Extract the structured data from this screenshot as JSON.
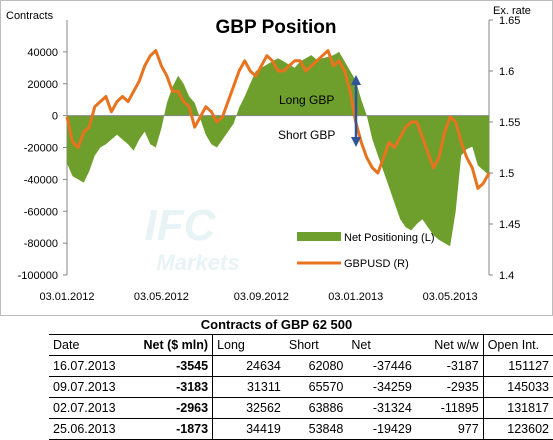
{
  "chart_data": {
    "type": "bar+line",
    "title": "GBP Position",
    "left_axis_label": "Contracts",
    "right_axis_label": "Ex. rate",
    "left_ylim": [
      -100000,
      60000
    ],
    "left_ticks": [
      40000,
      20000,
      0,
      -20000,
      -40000,
      -60000,
      -80000,
      -100000
    ],
    "left_tick_labels": [
      "40000",
      "20000",
      "0",
      "-20000",
      "-40000",
      "-60000",
      "-80000",
      "-100000"
    ],
    "right_ylim": [
      1.4,
      1.65
    ],
    "right_ticks": [
      1.4,
      1.45,
      1.5,
      1.55,
      1.6,
      1.65
    ],
    "right_tick_labels": [
      "1.4",
      "1.45",
      "1.5",
      "1.55",
      "1.6",
      "1.65"
    ],
    "x_tick_labels": [
      "03.01.2012",
      "03.05.2012",
      "03.09.2012",
      "03.01.2013",
      "03.05.2013"
    ],
    "x_tick_weeks": [
      0,
      17,
      35,
      52,
      69
    ],
    "annotations": {
      "long": "Long GBP",
      "short": "Short GBP"
    },
    "watermark": {
      "line1": "IFC",
      "line2": "Markets"
    },
    "series": [
      {
        "name": "Net Positioning (L)",
        "axis": "left",
        "color": "#6e9e2c",
        "values": [
          -30000,
          -38000,
          -40000,
          -42000,
          -35000,
          -25000,
          -20000,
          -18000,
          -15000,
          -12000,
          -15000,
          -18000,
          -22000,
          -15000,
          -10000,
          -18000,
          -20000,
          -8000,
          8000,
          18000,
          25000,
          20000,
          12000,
          8000,
          -2000,
          -12000,
          -18000,
          -20000,
          -15000,
          -10000,
          -5000,
          5000,
          12000,
          20000,
          28000,
          30000,
          32000,
          34000,
          36000,
          34000,
          32000,
          30000,
          34000,
          36000,
          38000,
          35000,
          36000,
          37000,
          38000,
          40000,
          34000,
          28000,
          22000,
          10000,
          0,
          -15000,
          -25000,
          -35000,
          -45000,
          -55000,
          -65000,
          -70000,
          -72000,
          -68000,
          -65000,
          -70000,
          -75000,
          -78000,
          -80000,
          -82000,
          -60000,
          -25000,
          -21000,
          -19429,
          -31324,
          -34259,
          -37446
        ]
      },
      {
        "name": "GBPUSD (R)",
        "axis": "right",
        "color": "#e8731f",
        "values": [
          1.555,
          1.53,
          1.525,
          1.54,
          1.545,
          1.565,
          1.57,
          1.575,
          1.56,
          1.57,
          1.575,
          1.57,
          1.58,
          1.59,
          1.605,
          1.615,
          1.62,
          1.605,
          1.595,
          1.58,
          1.58,
          1.57,
          1.565,
          1.545,
          1.555,
          1.565,
          1.56,
          1.55,
          1.555,
          1.57,
          1.585,
          1.6,
          1.61,
          1.6,
          1.595,
          1.605,
          1.615,
          1.61,
          1.6,
          1.6,
          1.605,
          1.61,
          1.61,
          1.6,
          1.605,
          1.61,
          1.615,
          1.62,
          1.605,
          1.61,
          1.6,
          1.58,
          1.55,
          1.53,
          1.515,
          1.505,
          1.5,
          1.515,
          1.53,
          1.525,
          1.535,
          1.545,
          1.55,
          1.55,
          1.535,
          1.52,
          1.505,
          1.515,
          1.54,
          1.555,
          1.55,
          1.53,
          1.515,
          1.505,
          1.485,
          1.49,
          1.5
        ]
      }
    ]
  },
  "table": {
    "title": "Contracts of GBP 62 500",
    "headers": [
      "Date",
      "Net ($ mln)",
      "Long",
      "Short",
      "Net",
      "Net w/w",
      "Open Int."
    ],
    "rows": [
      [
        "16.07.2013",
        "-3545",
        "24634",
        "62080",
        "-37446",
        "-3187",
        "151127"
      ],
      [
        "09.07.2013",
        "-3183",
        "31311",
        "65570",
        "-34259",
        "-2935",
        "145033"
      ],
      [
        "02.07.2013",
        "-2963",
        "32562",
        "63886",
        "-31324",
        "-11895",
        "131817"
      ],
      [
        "25.06.2013",
        "-1873",
        "34419",
        "53848",
        "-19429",
        "977",
        "123602"
      ]
    ]
  }
}
